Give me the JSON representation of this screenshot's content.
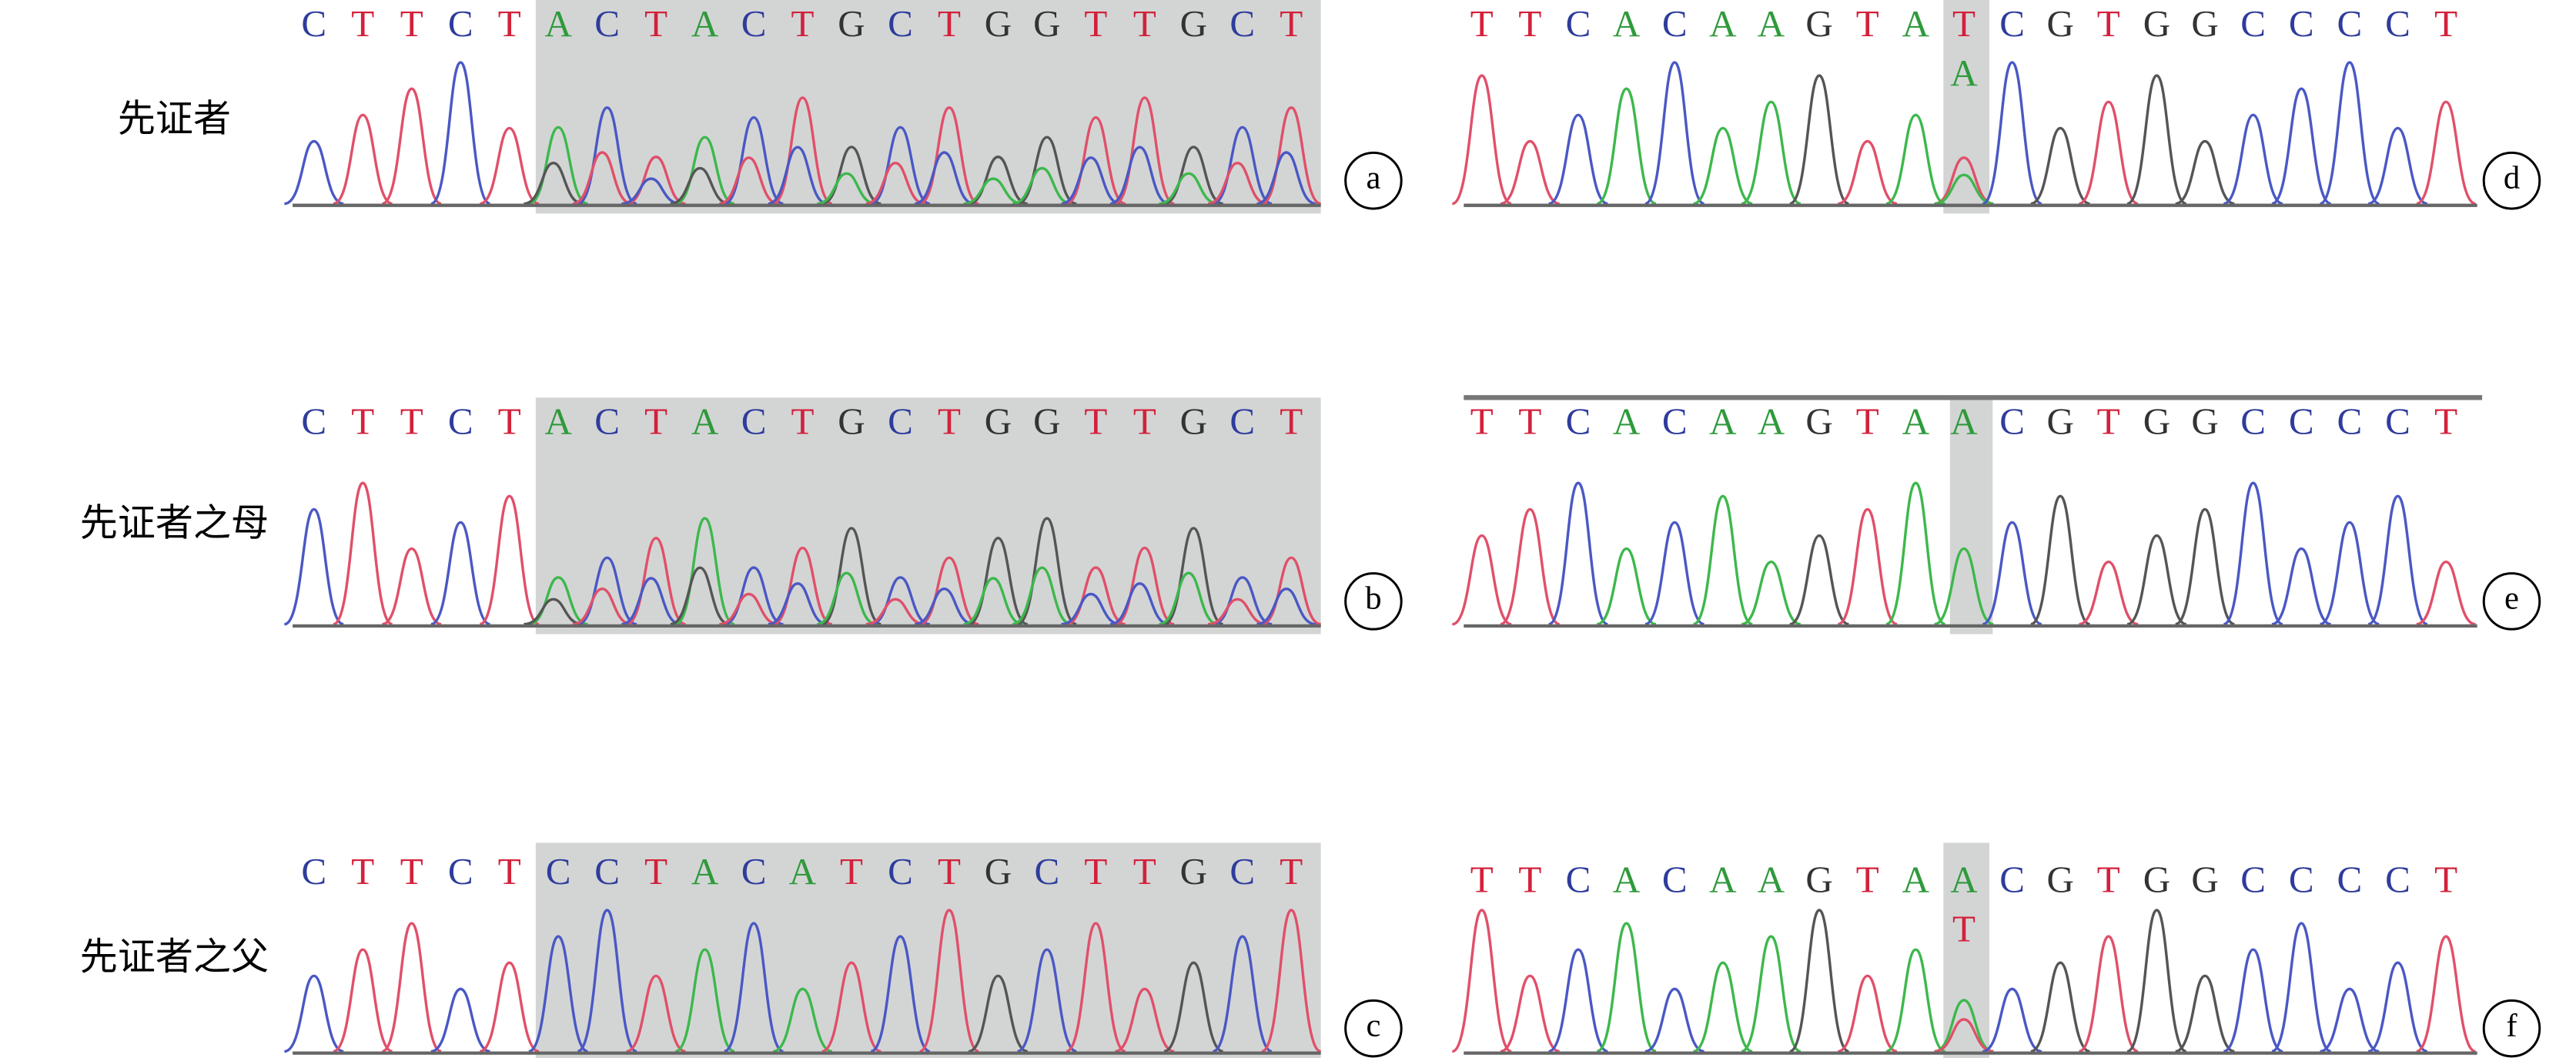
{
  "row_labels": [
    "先证者",
    "先证者之母",
    "先证者之父"
  ],
  "panels": [
    {
      "letter": "a",
      "bases": [
        "C",
        "T",
        "T",
        "C",
        "T",
        "A",
        "C",
        "T",
        "A",
        "C",
        "T",
        "G",
        "C",
        "T",
        "G",
        "G",
        "T",
        "T",
        "G",
        "C",
        "T"
      ]
    },
    {
      "letter": "b",
      "bases": [
        "C",
        "T",
        "T",
        "C",
        "T",
        "A",
        "C",
        "T",
        "A",
        "C",
        "T",
        "G",
        "C",
        "T",
        "G",
        "G",
        "T",
        "T",
        "G",
        "C",
        "T"
      ]
    },
    {
      "letter": "c",
      "bases": [
        "C",
        "T",
        "T",
        "C",
        "T",
        "C",
        "C",
        "T",
        "A",
        "C",
        "A",
        "T",
        "C",
        "T",
        "G",
        "C",
        "T",
        "T",
        "G",
        "C",
        "T"
      ]
    },
    {
      "letter": "d",
      "bases": [
        "T",
        "T",
        "C",
        "A",
        "C",
        "A",
        "A",
        "G",
        "T",
        "A",
        "T",
        "C",
        "G",
        "T",
        "G",
        "G",
        "C",
        "C",
        "C",
        "C",
        "T"
      ],
      "secondary_bases": [
        null,
        null,
        null,
        null,
        null,
        null,
        null,
        null,
        null,
        null,
        "A",
        null,
        null,
        null,
        null,
        null,
        null,
        null,
        null,
        null,
        null
      ]
    },
    {
      "letter": "e",
      "bases": [
        "T",
        "T",
        "C",
        "A",
        "C",
        "A",
        "A",
        "G",
        "T",
        "A",
        "A",
        "C",
        "G",
        "T",
        "G",
        "G",
        "C",
        "C",
        "C",
        "C",
        "T"
      ]
    },
    {
      "letter": "f",
      "bases": [
        "T",
        "T",
        "C",
        "A",
        "C",
        "A",
        "A",
        "G",
        "T",
        "A",
        "A",
        "C",
        "G",
        "T",
        "G",
        "G",
        "C",
        "C",
        "C",
        "C",
        "T"
      ],
      "secondary_bases": [
        null,
        null,
        null,
        null,
        null,
        null,
        null,
        null,
        null,
        null,
        "T",
        null,
        null,
        null,
        null,
        null,
        null,
        null,
        null,
        null,
        null
      ]
    }
  ]
}
